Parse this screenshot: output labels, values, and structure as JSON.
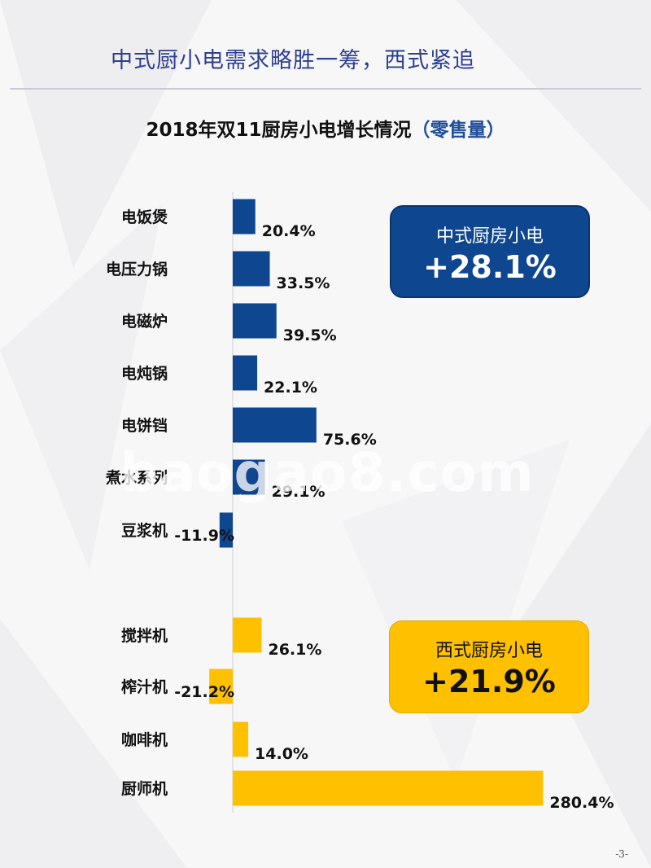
{
  "slide": {
    "title": "中式厨小电需求略胜一筹，西式紧追",
    "page_number": "-3-",
    "watermark": "baogao8.com"
  },
  "colors": {
    "chinese": "#0e4690",
    "western": "#ffc000",
    "title": "#2e3f90"
  },
  "summaries": {
    "chinese": {
      "label": "中式厨房小电",
      "value": "+28.1%"
    },
    "western": {
      "label": "西式厨房小电",
      "value": "+21.9%"
    }
  },
  "chart_data": {
    "type": "bar",
    "orientation": "horizontal",
    "title": "2018年双11厨房小电增长情况",
    "title_unit": "（零售量）",
    "value_format": "percent",
    "legend": "none",
    "grid": false,
    "series": [
      {
        "group": "中式厨房小电",
        "color": "#0e4690",
        "categories": [
          "电饭煲",
          "电压力锅",
          "电磁炉",
          "电炖锅",
          "电饼铛",
          "煮水系列",
          "豆浆机"
        ],
        "values": [
          20.4,
          33.5,
          39.5,
          22.1,
          75.6,
          29.1,
          -11.9
        ],
        "labels": [
          "20.4%",
          "33.5%",
          "39.5%",
          "22.1%",
          "75.6%",
          "29.1%",
          "-11.9%"
        ]
      },
      {
        "group": "西式厨房小电",
        "color": "#ffc000",
        "categories": [
          "搅拌机",
          "榨汁机",
          "咖啡机",
          "厨师机"
        ],
        "values": [
          26.1,
          -21.2,
          14.0,
          280.4
        ],
        "labels": [
          "26.1%",
          "-21.2%",
          "14.0%",
          "280.4%"
        ]
      }
    ]
  }
}
